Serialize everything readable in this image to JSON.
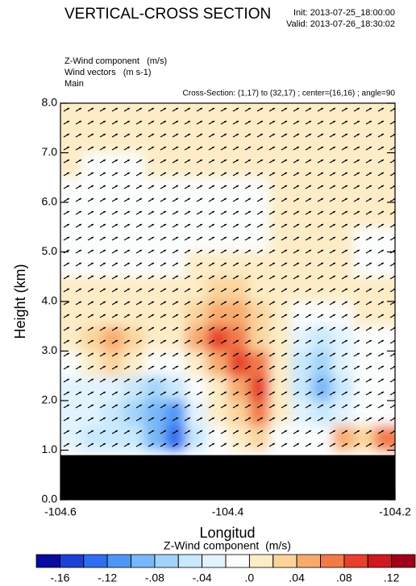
{
  "chart_data": {
    "type": "contour",
    "title": "VERTICAL-CROSS SECTION",
    "init": "Init: 2013-07-25_18:00:00",
    "valid": "Valid: 2013-07-26_18:30:02",
    "field_label": "Z-Wind component   (m/s)",
    "vector_label": "Wind vectors   (m s-1)",
    "run_label": "Main",
    "cross_section": "Cross-Section: (1,17) to (32,17) ; center=(16,16) ; angle=90",
    "x_label": "Longitud",
    "y_label": "Height (km)",
    "xlim": [
      -104.6,
      -104.2
    ],
    "ylim": [
      0,
      8
    ],
    "xticks": [
      -104.6,
      -104.4,
      -104.2
    ],
    "yticks": [
      {
        "value": 0,
        "label": "0.0"
      },
      {
        "value": 1,
        "label": "1.0"
      },
      {
        "value": 2,
        "label": "2.0"
      },
      {
        "value": 3,
        "label": "3.0"
      },
      {
        "value": 4,
        "label": "4.0"
      },
      {
        "value": 5,
        "label": "5.0"
      },
      {
        "value": 6,
        "label": "6.0"
      },
      {
        "value": 7,
        "label": "7.0"
      },
      {
        "value": 8,
        "label": "8.0"
      }
    ],
    "terrain_height": 0.9,
    "x": [
      -104.5875,
      -104.5625,
      -104.5375,
      -104.5125,
      -104.4875,
      -104.4625,
      -104.4375,
      -104.4125,
      -104.3875,
      -104.3625,
      -104.3375,
      -104.3125,
      -104.2875,
      -104.2625,
      -104.2375,
      -104.2125
    ],
    "y": [
      1.25,
      1.75,
      2.25,
      2.75,
      3.25,
      3.75,
      4.25,
      4.75,
      5.25,
      5.75,
      6.25,
      6.75,
      7.25,
      7.75
    ],
    "values": [
      [
        -0.03,
        -0.04,
        -0.05,
        -0.04,
        -0.08,
        -0.13,
        -0.05,
        -0.01,
        0.01,
        0.03,
        0.0,
        -0.01,
        0.0,
        0.05,
        0.03,
        0.08
      ],
      [
        -0.03,
        -0.03,
        -0.04,
        -0.07,
        -0.09,
        -0.1,
        -0.03,
        0.01,
        0.03,
        0.07,
        0.01,
        -0.02,
        -0.05,
        -0.03,
        0.0,
        0.0
      ],
      [
        -0.02,
        -0.02,
        -0.03,
        -0.05,
        -0.06,
        -0.05,
        -0.01,
        0.02,
        0.05,
        0.09,
        0.01,
        -0.04,
        -0.09,
        -0.04,
        0.0,
        0.0
      ],
      [
        0.0,
        0.01,
        0.03,
        0.02,
        0.0,
        -0.01,
        0.02,
        0.06,
        0.09,
        0.07,
        0.01,
        -0.05,
        -0.06,
        -0.03,
        0.0,
        0.0
      ],
      [
        0.01,
        0.03,
        0.05,
        0.04,
        0.01,
        0.02,
        0.05,
        0.09,
        0.08,
        0.04,
        0.01,
        -0.03,
        -0.04,
        -0.02,
        0.0,
        0.0
      ],
      [
        0.01,
        0.02,
        0.02,
        0.02,
        0.01,
        0.02,
        0.03,
        0.05,
        0.05,
        0.03,
        0.01,
        0.0,
        -0.01,
        0.0,
        0.01,
        0.01
      ],
      [
        0.01,
        0.01,
        0.01,
        0.01,
        0.01,
        0.01,
        0.02,
        0.03,
        0.03,
        0.02,
        0.01,
        0.01,
        0.01,
        0.01,
        0.01,
        0.01
      ],
      [
        0.0,
        0.0,
        0.0,
        0.0,
        0.0,
        0.0,
        0.01,
        0.01,
        0.01,
        0.01,
        0.01,
        0.01,
        0.01,
        0.01,
        0.0,
        0.0
      ],
      [
        0.0,
        0.0,
        -0.01,
        -0.01,
        0.0,
        0.0,
        0.0,
        0.0,
        0.0,
        0.0,
        0.01,
        0.01,
        0.01,
        0.01,
        0.0,
        0.0
      ],
      [
        0.0,
        -0.01,
        -0.01,
        -0.01,
        -0.01,
        -0.01,
        -0.01,
        0.0,
        0.0,
        0.0,
        0.01,
        0.01,
        0.01,
        0.01,
        0.01,
        0.01
      ],
      [
        0.0,
        0.0,
        0.0,
        0.0,
        0.0,
        0.0,
        0.0,
        0.0,
        0.0,
        0.0,
        0.01,
        0.01,
        0.01,
        0.01,
        0.01,
        0.01
      ],
      [
        0.01,
        0.0,
        0.0,
        0.0,
        0.01,
        0.01,
        0.01,
        0.01,
        0.01,
        0.01,
        0.01,
        0.01,
        0.01,
        0.01,
        0.01,
        0.01
      ],
      [
        0.01,
        0.01,
        0.01,
        0.01,
        0.01,
        0.01,
        0.01,
        0.01,
        0.02,
        0.01,
        0.01,
        0.01,
        0.01,
        0.01,
        0.01,
        0.01
      ],
      [
        0.01,
        0.01,
        0.01,
        0.01,
        0.01,
        0.01,
        0.01,
        0.01,
        0.02,
        0.02,
        0.01,
        0.01,
        0.01,
        0.01,
        0.01,
        0.01
      ]
    ],
    "colorbar": {
      "title": "Z-Wind component  (m/s)",
      "levels": [
        -0.16,
        -0.14,
        -0.12,
        -0.1,
        -0.08,
        -0.06,
        -0.04,
        -0.02,
        0,
        0.02,
        0.04,
        0.06,
        0.08,
        0.1,
        0.12
      ],
      "labels": [
        {
          "value": -0.16,
          "label": "-.16"
        },
        {
          "value": -0.12,
          "label": "-.12"
        },
        {
          "value": -0.08,
          "label": "-.08"
        },
        {
          "value": -0.04,
          "label": "-.04"
        },
        {
          "value": 0,
          "label": ".0"
        },
        {
          "value": 0.04,
          "label": ".04"
        },
        {
          "value": 0.08,
          "label": ".08"
        },
        {
          "value": 0.12,
          "label": ".12"
        }
      ],
      "colors": [
        "#0a0aa0",
        "#1c3fd8",
        "#2f6ef0",
        "#4e96f5",
        "#78b8f8",
        "#a2d4fb",
        "#c8e8fd",
        "#e2f3fe",
        "#fbfdfd",
        "#fdecc6",
        "#fbd49c",
        "#f8aa6e",
        "#f27a48",
        "#e8402c",
        "#d01820",
        "#a00018"
      ]
    }
  }
}
